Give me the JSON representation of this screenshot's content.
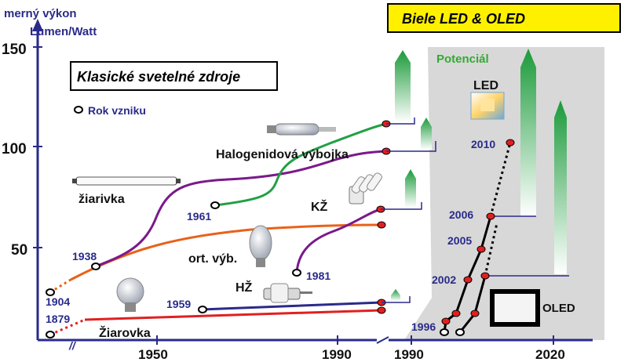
{
  "header": {
    "ylabel_line1": "merný výkon",
    "ylabel_line2": "Lumen/Watt",
    "led_banner": "Biele LED & OLED",
    "classic_box": "Klasické svetelné zdroje",
    "legend_year": "Rok vzniku",
    "potential": "Potenciál"
  },
  "chart_data": {
    "type": "line",
    "ylabel": "merný výkon Lumen/Watt",
    "y_ticks": [
      "150",
      "100",
      "50"
    ],
    "x_ticks_left": [
      "1950",
      "1990"
    ],
    "x_ticks_right": [
      "1990",
      "2020"
    ],
    "axis_break": "//",
    "colors": {
      "purple": "#7a1a8a",
      "orange": "#e8621a",
      "green": "#22a044",
      "navy": "#2a2a8a",
      "red": "#e02020",
      "black": "#111111",
      "gray_panel": "#d6d6d6",
      "banner_yellow": "#fff000"
    },
    "series": [
      {
        "name": "Žiarovka",
        "start_year_label": "1879"
      },
      {
        "name": "žiarivka",
        "start_year_label": "1938"
      },
      {
        "name": "Halogenidová výbojka",
        "start_year_label": "1961"
      },
      {
        "name": "ort. výb.",
        "start_year_label": "1904"
      },
      {
        "name": "KŽ",
        "start_year_label": "1981"
      },
      {
        "name": "HŽ",
        "start_year_label": "1959"
      },
      {
        "name": "LED",
        "year_labels": [
          "1996",
          "2002",
          "2005",
          "2006",
          "2010"
        ]
      },
      {
        "name": "OLED"
      }
    ]
  }
}
